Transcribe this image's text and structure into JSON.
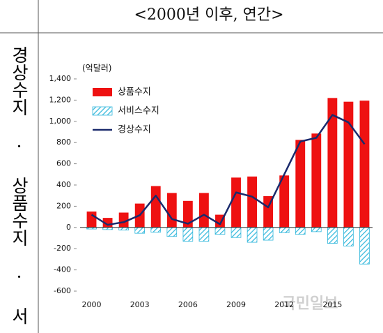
{
  "header": {
    "title": "<2000년 이후, 연간>"
  },
  "side_label": "경상수지 · 상품수지 · 서비스수지",
  "watermark": "국민일보",
  "chart_data": {
    "type": "bar",
    "unit_label": "(억달러)",
    "categories": [
      "2000",
      null,
      null,
      "2003",
      null,
      null,
      "2006",
      null,
      null,
      "2009",
      null,
      null,
      "2012",
      null,
      null,
      "2015",
      null,
      null
    ],
    "series": [
      {
        "name": "상품수지",
        "type": "bar",
        "color": "#ee1111",
        "values": [
          150,
          90,
          140,
          225,
          390,
          325,
          250,
          325,
          120,
          470,
          480,
          295,
          490,
          825,
          885,
          1220,
          1185,
          1195
        ]
      },
      {
        "name": "서비스수지",
        "type": "bar",
        "color": "#33b8dc",
        "hatch": true,
        "values": [
          -15,
          -20,
          -25,
          -55,
          -45,
          -85,
          -130,
          -130,
          -65,
          -95,
          -140,
          -120,
          -50,
          -65,
          -40,
          -150,
          -175,
          -345
        ]
      },
      {
        "name": "경상수지",
        "type": "line",
        "color": "#1a2a6c",
        "values": [
          120,
          25,
          50,
          115,
          300,
          80,
          35,
          120,
          30,
          330,
          290,
          190,
          500,
          810,
          845,
          1060,
          990,
          785
        ]
      }
    ],
    "ylim": [
      -600,
      1400
    ],
    "yticks": [
      -600,
      -400,
      -200,
      0,
      200,
      400,
      600,
      800,
      {
        "value": 1000,
        "label": "1,000"
      },
      {
        "value": 1200,
        "label": "1,200"
      },
      {
        "value": 1400,
        "label": "1,400"
      }
    ],
    "legend": "upper left"
  }
}
